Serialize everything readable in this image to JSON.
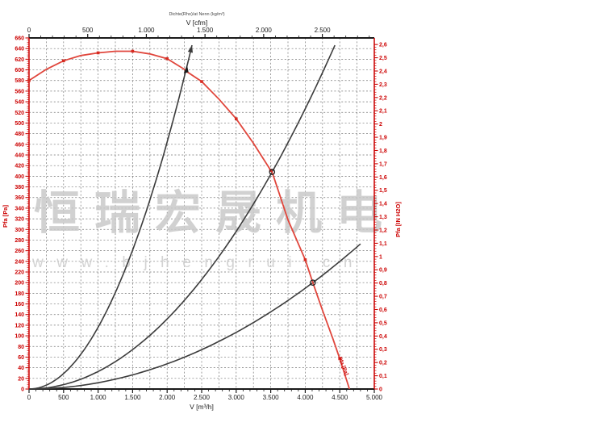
{
  "watermark": {
    "line1": "恒瑞宏晟机电",
    "line2": "www.bjhengrui.cn"
  },
  "chart_data": {
    "type": "line",
    "title_note": "Dichte(Rho)/at Nenn (kg/m³)",
    "axes": {
      "top": {
        "label": "V [cfm]",
        "min": 0,
        "max_label": 2500,
        "major_step": 500,
        "minor_step": 100,
        "cfm_to_m3h": 1.699,
        "tick_labels": [
          "0",
          "500",
          "1.000",
          "1.500",
          "2.000",
          "2.500"
        ],
        "color": "#1a1a1a"
      },
      "bottom": {
        "label": "V [m³/h]",
        "min": 0,
        "max": 5000,
        "major_step": 500,
        "minor_step": 100,
        "tick_labels": [
          "0",
          "500",
          "1.000",
          "1.500",
          "2.000",
          "2.500",
          "3.000",
          "3.500",
          "4.000",
          "4.500",
          "5.000"
        ],
        "color": "#1a1a1a"
      },
      "left": {
        "label": "Pfa [Pa]",
        "min": 0,
        "max": 660,
        "major_step": 20,
        "minor_step": 4,
        "color": "#cc0000"
      },
      "right": {
        "label": "Pfa [IN H2O]",
        "min": 0,
        "max": 2.6,
        "major_step": 0.1,
        "minor_step": 0.02,
        "pa_per_unit": 249.089,
        "tick_labels": [
          "0",
          "0,1",
          "0,2",
          "0,3",
          "0,4",
          "0,5",
          "0,6",
          "0,7",
          "0,8",
          "0,9",
          "1",
          "1,1",
          "1,2",
          "1,3",
          "1,4",
          "1,5",
          "1,6",
          "1,7",
          "1,8",
          "1,9",
          "2",
          "2,1",
          "2,2",
          "2,3",
          "2,4",
          "2,5",
          "2,6"
        ],
        "color": "#cc0000"
      }
    },
    "grid": {
      "x_step": 250,
      "y_step": 20,
      "color": "#747474"
    },
    "series": [
      {
        "name": "fan-pressure-curve",
        "label": "Pfa [Pa]",
        "color": "#e0463c",
        "marker_color": "#d62b22",
        "marker": "square",
        "marker_every": 500,
        "points": [
          [
            0,
            580
          ],
          [
            250,
            601
          ],
          [
            500,
            617
          ],
          [
            750,
            627
          ],
          [
            1000,
            632
          ],
          [
            1250,
            635
          ],
          [
            1500,
            635
          ],
          [
            1750,
            630
          ],
          [
            2000,
            621
          ],
          [
            2250,
            601
          ],
          [
            2270,
            598
          ],
          [
            2500,
            578
          ],
          [
            2750,
            545
          ],
          [
            3000,
            508
          ],
          [
            3250,
            462
          ],
          [
            3500,
            411
          ],
          [
            3520,
            408
          ],
          [
            3750,
            318
          ],
          [
            4000,
            243
          ],
          [
            4110,
            200
          ],
          [
            4250,
            148
          ],
          [
            4400,
            95
          ],
          [
            4500,
            57
          ],
          [
            4640,
            0
          ]
        ]
      },
      {
        "name": "system-curve-steep",
        "color": "#3c3c3c",
        "parabola": {
          "v_ref": 2270,
          "p_ref": 598,
          "v_end": 2360
        },
        "arrow_end": true
      },
      {
        "name": "system-curve-mid",
        "color": "#3c3c3c",
        "parabola": {
          "v_ref": 3520,
          "p_ref": 408,
          "v_end": 4430
        }
      },
      {
        "name": "system-curve-shallow",
        "color": "#3c3c3c",
        "parabola": {
          "v_ref": 4110,
          "p_ref": 200,
          "v_end": 4800
        }
      }
    ],
    "working_points": [
      {
        "v": 2270,
        "pa": 598,
        "marker": "arrow"
      },
      {
        "v": 3520,
        "pa": 408,
        "marker": "circle"
      },
      {
        "v": 4110,
        "pa": 200,
        "marker": "circle"
      }
    ],
    "curve_end_label": {
      "text": "Pfa [Pa]",
      "v": 4530,
      "pa": 42,
      "angle": 68
    }
  }
}
